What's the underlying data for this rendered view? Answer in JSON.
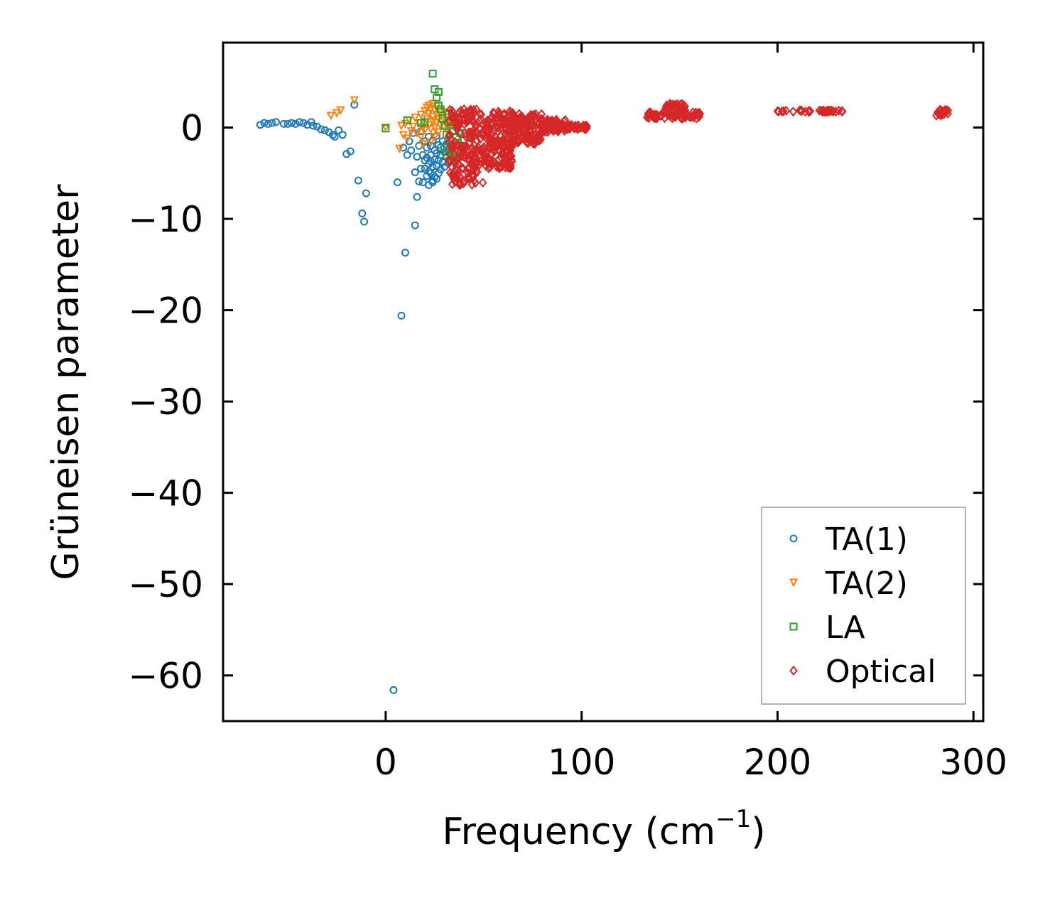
{
  "chart_data": {
    "type": "scatter",
    "xlabel": "Frequency (cm",
    "xlabel_sup": "−1",
    "xlabel_close": ")",
    "ylabel": "Grüneisen parameter",
    "xlim": [
      -83,
      305
    ],
    "ylim": [
      -65,
      9.3
    ],
    "xticks": [
      0,
      100,
      200,
      300
    ],
    "yticks": [
      0,
      -10,
      -20,
      -30,
      -40,
      -50,
      -60
    ],
    "xtick_labels": [
      "0",
      "100",
      "200",
      "300"
    ],
    "ytick_labels": [
      "0",
      "−10",
      "−20",
      "−30",
      "−40",
      "−50",
      "−60"
    ],
    "legend_position": "lower-right",
    "colors": {
      "TA(1)": "#1f77b4",
      "TA(2)": "#ff7f0e",
      "LA": "#2ca02c",
      "Optical": "#d62728"
    },
    "series": [
      {
        "name": "TA(1)",
        "marker": "circle",
        "points": [
          [
            -64,
            0.3
          ],
          [
            -62,
            0.5
          ],
          [
            -60,
            0.4
          ],
          [
            -58,
            0.5
          ],
          [
            -56,
            0.6
          ],
          [
            -52,
            0.4
          ],
          [
            -50,
            0.4
          ],
          [
            -48,
            0.5
          ],
          [
            -46,
            0.4
          ],
          [
            -44,
            0.6
          ],
          [
            -42,
            0.5
          ],
          [
            -40,
            0.3
          ],
          [
            -38,
            0.6
          ],
          [
            -37,
            0.2
          ],
          [
            -35,
            0.1
          ],
          [
            -33,
            -0.2
          ],
          [
            -31,
            -0.3
          ],
          [
            -29,
            -0.5
          ],
          [
            -27,
            -0.8
          ],
          [
            -26,
            -1.0
          ],
          [
            -24,
            -0.3
          ],
          [
            -22,
            -0.8
          ],
          [
            -20,
            -2.9
          ],
          [
            -18,
            -2.6
          ],
          [
            -16,
            2.5
          ],
          [
            -14,
            -5.8
          ],
          [
            -12,
            -9.4
          ],
          [
            -11,
            -10.3
          ],
          [
            -10,
            -7.2
          ],
          [
            4,
            -61.6
          ],
          [
            6,
            -6.0
          ],
          [
            8,
            -20.6
          ],
          [
            9,
            -2.2
          ],
          [
            10,
            -13.7
          ],
          [
            11,
            -3.0
          ],
          [
            12,
            -1.5
          ],
          [
            13,
            -2.5
          ],
          [
            14,
            -0.6
          ],
          [
            15,
            -4.9
          ],
          [
            15,
            -10.7
          ],
          [
            16,
            -3.2
          ],
          [
            16,
            -7.6
          ],
          [
            17,
            -5.9
          ],
          [
            17,
            -2.0
          ],
          [
            18,
            -4.5
          ],
          [
            18,
            -0.4
          ],
          [
            19,
            -3.0
          ],
          [
            19,
            -6.0
          ],
          [
            20,
            -1.5
          ],
          [
            20,
            -3.6
          ],
          [
            21,
            -5.3
          ],
          [
            21,
            -2.2
          ],
          [
            22,
            -4.0
          ],
          [
            22,
            -6.3
          ],
          [
            22,
            -1.0
          ],
          [
            23,
            -3.0
          ],
          [
            23,
            -5.0
          ],
          [
            23,
            -2.0
          ],
          [
            24,
            -4.3
          ],
          [
            24,
            -1.4
          ],
          [
            24,
            -6.0
          ],
          [
            25,
            -3.5
          ],
          [
            25,
            -2.5
          ],
          [
            25,
            -5.4
          ],
          [
            26,
            -0.9
          ],
          [
            26,
            -4.2
          ],
          [
            26,
            -2.8
          ],
          [
            27,
            -3.6
          ],
          [
            27,
            -1.9
          ],
          [
            27,
            -5.0
          ],
          [
            28,
            -3.0
          ],
          [
            28,
            -4.6
          ],
          [
            28,
            -2.2
          ],
          [
            29,
            -3.8
          ],
          [
            29,
            -1.5
          ],
          [
            30,
            -2.7
          ],
          [
            30,
            -4.3
          ],
          [
            31,
            -3.2
          ],
          [
            31,
            -1.8
          ],
          [
            32,
            -2.5
          ],
          [
            32,
            -3.9
          ],
          [
            33,
            -2.0
          ],
          [
            22,
            -4.8
          ],
          [
            24,
            -5.8
          ],
          [
            21,
            -3.3
          ],
          [
            20,
            -4.5
          ],
          [
            26,
            -5.6
          ],
          [
            23,
            -3.7
          ]
        ]
      },
      {
        "name": "TA(2)",
        "marker": "triangle_down",
        "points": [
          [
            -28,
            1.3
          ],
          [
            -25,
            1.6
          ],
          [
            -23,
            1.9
          ],
          [
            -16,
            3.0
          ],
          [
            0,
            0.0
          ],
          [
            7,
            -2.3
          ],
          [
            8,
            0.2
          ],
          [
            9,
            -0.8
          ],
          [
            10,
            0.4
          ],
          [
            11,
            -1.2
          ],
          [
            12,
            0.8
          ],
          [
            13,
            -0.4
          ],
          [
            14,
            0.1
          ],
          [
            15,
            1.1
          ],
          [
            16,
            -0.6
          ],
          [
            17,
            0.5
          ],
          [
            18,
            1.4
          ],
          [
            18,
            -1.0
          ],
          [
            19,
            0.0
          ],
          [
            20,
            1.8
          ],
          [
            20,
            -0.3
          ],
          [
            21,
            0.9
          ],
          [
            21,
            2.2
          ],
          [
            22,
            0.3
          ],
          [
            22,
            1.5
          ],
          [
            23,
            -0.2
          ],
          [
            23,
            2.0
          ],
          [
            24,
            0.7
          ],
          [
            24,
            1.2
          ],
          [
            25,
            0.0
          ],
          [
            25,
            1.9
          ],
          [
            26,
            0.5
          ],
          [
            26,
            1.4
          ],
          [
            27,
            -0.5
          ],
          [
            27,
            1.0
          ],
          [
            28,
            0.2
          ],
          [
            28,
            1.8
          ],
          [
            29,
            0.6
          ],
          [
            29,
            1.3
          ],
          [
            30,
            0.0
          ],
          [
            30,
            1.7
          ],
          [
            31,
            0.4
          ],
          [
            31,
            1.1
          ],
          [
            32,
            -0.3
          ],
          [
            33,
            0.8
          ],
          [
            34,
            0.2
          ],
          [
            35,
            0.5
          ],
          [
            22,
            2.4
          ],
          [
            24,
            2.6
          ],
          [
            26,
            2.3
          ],
          [
            23,
            -1.6
          ],
          [
            25,
            -1.0
          ],
          [
            19,
            -1.8
          ]
        ]
      },
      {
        "name": "LA",
        "marker": "square",
        "points": [
          [
            0,
            -0.1
          ],
          [
            11,
            0.8
          ],
          [
            18,
            0.5
          ],
          [
            20,
            0.6
          ],
          [
            24,
            5.9
          ],
          [
            25,
            4.2
          ],
          [
            26,
            3.3
          ],
          [
            27,
            3.9
          ],
          [
            27,
            2.4
          ],
          [
            28,
            2.0
          ],
          [
            29,
            1.0
          ],
          [
            30,
            0.2
          ],
          [
            31,
            -0.8
          ],
          [
            32,
            1.5
          ],
          [
            33,
            -1.5
          ],
          [
            34,
            -0.4
          ],
          [
            35,
            -2.5
          ],
          [
            36,
            -1.0
          ],
          [
            37,
            -1.9
          ],
          [
            38,
            -0.6
          ],
          [
            39,
            -2.0
          ],
          [
            40,
            -1.4
          ],
          [
            31,
            -3.0
          ],
          [
            33,
            -3.6
          ],
          [
            35,
            -3.2
          ],
          [
            30,
            -2.2
          ],
          [
            32,
            0.6
          ],
          [
            34,
            -2.7
          ],
          [
            36,
            -3.4
          ],
          [
            38,
            -2.9
          ]
        ]
      },
      {
        "name": "Optical",
        "marker": "diamond",
        "generated_ranges": [
          {
            "x": [
              32,
              50
            ],
            "y": [
              -6.3,
              2.0
            ],
            "n": 180
          },
          {
            "x": [
              50,
              65
            ],
            "y": [
              -4.5,
              1.8
            ],
            "n": 170
          },
          {
            "x": [
              65,
              80
            ],
            "y": [
              -1.8,
              1.6
            ],
            "n": 120
          },
          {
            "x": [
              80,
              92
            ],
            "y": [
              -0.5,
              0.9
            ],
            "n": 70
          },
          {
            "x": [
              92,
              103
            ],
            "y": [
              -0.2,
              0.3
            ],
            "n": 40
          },
          {
            "x": [
              133,
              162
            ],
            "y": [
              1.0,
              1.7
            ],
            "n": 60
          },
          {
            "x": [
              142,
              153
            ],
            "y": [
              1.5,
              2.6
            ],
            "n": 40
          },
          {
            "x": [
              200,
              233
            ],
            "y": [
              1.7,
              1.9
            ],
            "n": 35
          },
          {
            "x": [
              281,
              287
            ],
            "y": [
              1.3,
              2.0
            ],
            "n": 25
          }
        ],
        "points": [
          [
            34,
            -6.2
          ],
          [
            38,
            -6.0
          ],
          [
            36,
            -5.5
          ],
          [
            42,
            -5.0
          ],
          [
            46,
            -4.4
          ],
          [
            52,
            -3.8
          ],
          [
            58,
            -2.6
          ],
          [
            40,
            2.0
          ],
          [
            44,
            1.8
          ],
          [
            48,
            1.5
          ],
          [
            150,
            2.3
          ],
          [
            147,
            2.5
          ],
          [
            160,
            1.2
          ],
          [
            200,
            1.8
          ],
          [
            233,
            1.8
          ],
          [
            285,
            1.6
          ]
        ]
      }
    ]
  }
}
